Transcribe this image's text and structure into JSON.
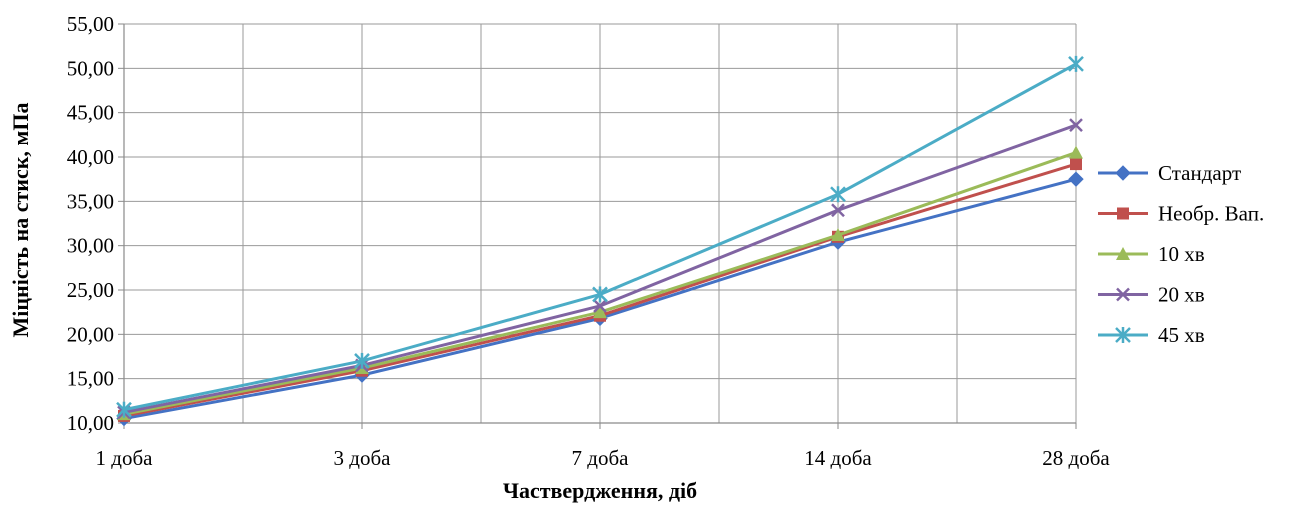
{
  "chart_data": {
    "type": "line",
    "title": "",
    "xlabel": "Частвердження, діб",
    "ylabel": "Міцність на стиск, мПа",
    "categories": [
      "1 доба",
      "3 доба",
      "7 доба",
      "14 доба",
      "28 доба"
    ],
    "ylim": [
      10,
      55
    ],
    "y_ticks": [
      10,
      15,
      20,
      25,
      30,
      35,
      40,
      45,
      50,
      55
    ],
    "y_tick_labels": [
      "10,00",
      "15,00",
      "20,00",
      "25,00",
      "30,00",
      "35,00",
      "40,00",
      "45,00",
      "50,00",
      "55,00"
    ],
    "grid": true,
    "legend_position": "right",
    "series": [
      {
        "name": "Стандарт",
        "color": "#4472C4",
        "marker": "diamond",
        "values": [
          10.5,
          15.4,
          21.8,
          30.4,
          37.5
        ]
      },
      {
        "name": "Необр. Вап.",
        "color": "#C0504D",
        "marker": "square",
        "values": [
          10.8,
          15.9,
          22.1,
          31.0,
          39.2
        ]
      },
      {
        "name": "10 хв",
        "color": "#9BBB59",
        "marker": "triangle",
        "values": [
          11.0,
          16.2,
          22.5,
          31.2,
          40.5
        ]
      },
      {
        "name": "20 хв",
        "color": "#8064A2",
        "marker": "x",
        "values": [
          11.2,
          16.5,
          23.2,
          34.0,
          43.6
        ]
      },
      {
        "name": "45 хв",
        "color": "#4BACC6",
        "marker": "star",
        "values": [
          11.5,
          17.0,
          24.5,
          35.8,
          50.5
        ]
      }
    ]
  }
}
